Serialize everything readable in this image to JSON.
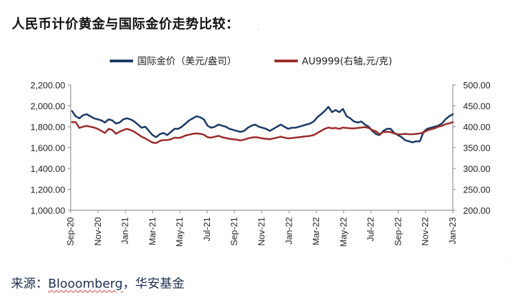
{
  "page": {
    "title": "人民币计价黄金与国际金价走势比较：",
    "source_prefix": "来源：",
    "source_name": "Blooomberg",
    "source_sep": "，",
    "source_suffix": "华安基金"
  },
  "chart_data": {
    "type": "line",
    "title": "",
    "x_labels": [
      "Sep-20",
      "Nov-20",
      "Jan-21",
      "Mar-21",
      "May-21",
      "Jul-21",
      "Sep-21",
      "Nov-21",
      "Jan-22",
      "Mar-22",
      "May-22",
      "Jul-22",
      "Sep-22",
      "Nov-22",
      "Jan-23"
    ],
    "left_axis": {
      "ylim": [
        1000,
        2200
      ],
      "ticks": [
        "1,000.00",
        "1,200.00",
        "1,400.00",
        "1,600.00",
        "1,800.00",
        "2,000.00",
        "2,200.00"
      ]
    },
    "right_axis": {
      "ylim": [
        200,
        500
      ],
      "ticks": [
        "200.00",
        "250.00",
        "300.00",
        "350.00",
        "400.00",
        "450.00",
        "500.00"
      ]
    },
    "series": [
      {
        "name": "国际金价（美元/盎司）",
        "axis": "left",
        "color": "#1b3a66",
        "values": [
          1950,
          1900,
          1880,
          1910,
          1920,
          1900,
          1880,
          1870,
          1860,
          1840,
          1870,
          1860,
          1830,
          1840,
          1870,
          1880,
          1870,
          1850,
          1820,
          1790,
          1800,
          1760,
          1720,
          1700,
          1730,
          1740,
          1720,
          1750,
          1780,
          1780,
          1800,
          1830,
          1860,
          1880,
          1900,
          1890,
          1870,
          1810,
          1790,
          1800,
          1820,
          1810,
          1800,
          1780,
          1770,
          1760,
          1750,
          1760,
          1790,
          1810,
          1820,
          1800,
          1790,
          1780,
          1760,
          1780,
          1800,
          1820,
          1800,
          1780,
          1790,
          1790,
          1800,
          1810,
          1820,
          1830,
          1850,
          1890,
          1920,
          1950,
          1990,
          1940,
          1960,
          1940,
          1970,
          1900,
          1880,
          1850,
          1840,
          1850,
          1820,
          1800,
          1760,
          1730,
          1720,
          1760,
          1780,
          1780,
          1740,
          1720,
          1700,
          1670,
          1660,
          1650,
          1660,
          1660,
          1750,
          1780,
          1790,
          1800,
          1810,
          1830,
          1870,
          1900,
          1920
        ]
      },
      {
        "name": "AU9999(右轴,元/克)",
        "axis": "right",
        "color": "#9b2c2c",
        "values": [
          411,
          411,
          397,
          400,
          402,
          400,
          398,
          395,
          390,
          385,
          395,
          392,
          383,
          388,
          392,
          395,
          392,
          388,
          382,
          376,
          372,
          367,
          362,
          361,
          366,
          368,
          368,
          370,
          374,
          373,
          375,
          379,
          381,
          383,
          384,
          383,
          381,
          375,
          374,
          376,
          378,
          375,
          373,
          371,
          370,
          369,
          367,
          369,
          372,
          374,
          375,
          374,
          372,
          371,
          370,
          372,
          374,
          376,
          374,
          372,
          373,
          374,
          375,
          376,
          377,
          378,
          380,
          385,
          390,
          395,
          398,
          396,
          397,
          395,
          398,
          397,
          396,
          396,
          397,
          398,
          399,
          397,
          392,
          389,
          382,
          387,
          388,
          387,
          384,
          382,
          382,
          383,
          382,
          382,
          383,
          384,
          386,
          391,
          394,
          396,
          400,
          402,
          406,
          408,
          411
        ]
      }
    ]
  }
}
